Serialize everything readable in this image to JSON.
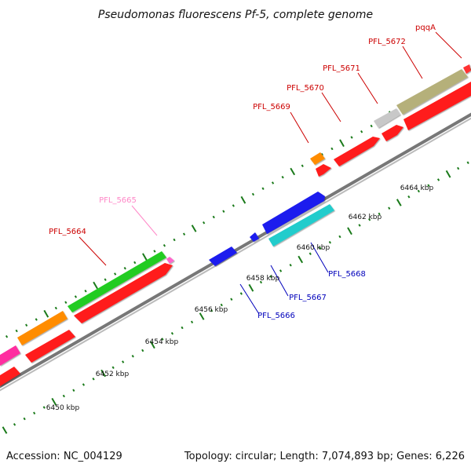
{
  "title": "Pseudomonas fluorescens Pf-5, complete genome",
  "footer": {
    "accession": "Accession: NC_004129",
    "topology": "Topology: circular; Length: 7,074,893 bp; Genes: 6,226"
  },
  "colors": {
    "backbone": "#888888",
    "tick": "#1a7a1a",
    "forward_label": "#cc0000",
    "reverse_label": "#0000bb",
    "pink_label": "#ff88c8"
  },
  "scale_labels": [
    "6450 kbp",
    "6452 kbp",
    "6454 kbp",
    "6456 kbp",
    "6458 kbp",
    "6460 kbp",
    "6462 kbp",
    "6464 kbp"
  ],
  "gene_labels": {
    "forward": [
      "PFL_5664",
      "PFL_5665",
      "PFL_5669",
      "PFL_5670",
      "PFL_5671",
      "PFL_5672",
      "pqqA"
    ],
    "reverse": [
      "PFL_5666",
      "PFL_5667",
      "PFL_5668"
    ]
  }
}
